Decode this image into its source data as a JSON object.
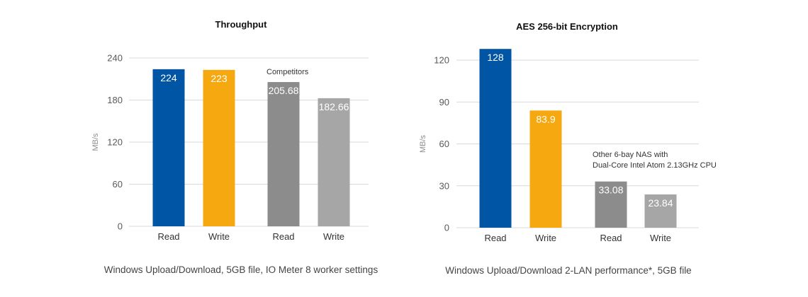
{
  "chart_data": [
    {
      "type": "bar",
      "title": "Throughput",
      "ylabel": "MB/s",
      "ylim": [
        0,
        240
      ],
      "yticks": [
        0,
        60,
        120,
        180,
        240
      ],
      "grid": true,
      "categories": [
        "Read",
        "Write",
        "Read",
        "Write"
      ],
      "values": [
        224,
        223,
        205.68,
        182.66
      ],
      "data_labels": [
        "224",
        "223",
        "205.68",
        "182.66"
      ],
      "colors": [
        "#0055a5",
        "#f5a810",
        "#8c8c8c",
        "#a6a6a6"
      ],
      "annotation": [
        "Competitors"
      ],
      "caption": "Windows Upload/Download, 5GB file, IO Meter 8 worker settings"
    },
    {
      "type": "bar",
      "title": "AES 256-bit Encryption",
      "ylabel": "MB/s",
      "ylim": [
        0,
        120
      ],
      "yticks": [
        0,
        30,
        60,
        90,
        120
      ],
      "grid": true,
      "categories": [
        "Read",
        "Write",
        "Read",
        "Write"
      ],
      "values": [
        128,
        83.9,
        33.08,
        23.84
      ],
      "data_labels": [
        "128",
        "83.9",
        "33.08",
        "23.84"
      ],
      "colors": [
        "#0055a5",
        "#f5a810",
        "#8c8c8c",
        "#a6a6a6"
      ],
      "annotation": [
        "Other 6-bay NAS with",
        "Dual-Core Intel Atom 2.13GHz CPU"
      ],
      "caption": "Windows Upload/Download 2-LAN performance*, 5GB file"
    }
  ]
}
